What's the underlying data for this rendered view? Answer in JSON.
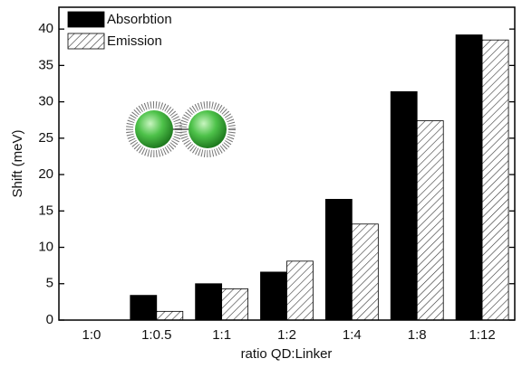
{
  "chart_data": {
    "type": "bar",
    "x_label": "ratio QD:Linker",
    "y_label": "Shift (meV)",
    "categories": [
      "1:0",
      "1:0.5",
      "1:1",
      "1:2",
      "1:4",
      "1:8",
      "1:12"
    ],
    "series": [
      {
        "name": "Absorbtion",
        "color": "#000000",
        "values": [
          0,
          3.4,
          5.0,
          6.6,
          16.6,
          31.4,
          39.2
        ]
      },
      {
        "name": "Emission",
        "color": "hatch",
        "values": [
          0,
          1.2,
          4.3,
          8.1,
          13.2,
          27.4,
          38.5
        ]
      }
    ],
    "ylim": [
      0,
      43
    ],
    "yticks": [
      0,
      5,
      10,
      15,
      20,
      25,
      30,
      35,
      40
    ],
    "legend": "top-left"
  }
}
